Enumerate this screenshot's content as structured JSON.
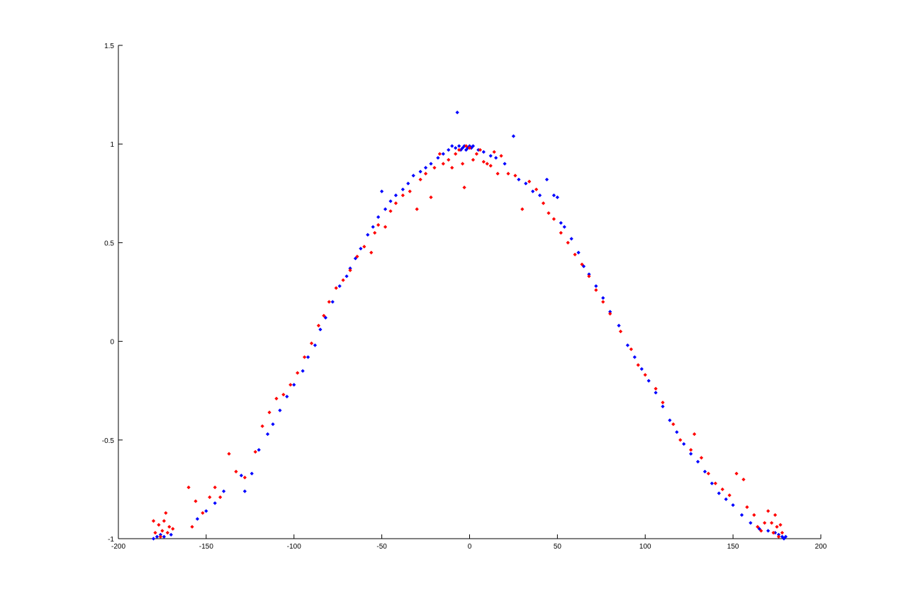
{
  "chart_data": {
    "type": "scatter",
    "title": "",
    "xlabel": "",
    "ylabel": "",
    "xlim": [
      -200,
      200
    ],
    "ylim": [
      -1,
      1.5
    ],
    "x_ticks": [
      -200,
      -150,
      -100,
      -50,
      0,
      50,
      100,
      150,
      200
    ],
    "y_ticks": [
      -1,
      -0.5,
      0,
      0.5,
      1,
      1.5
    ],
    "x_tick_labels": [
      "-200",
      "-150",
      "-100",
      "-50",
      "0",
      "50",
      "100",
      "150",
      "200"
    ],
    "y_tick_labels": [
      "-1",
      "-0.5",
      "0",
      "0.5",
      "1",
      "1.5"
    ],
    "grid": false,
    "marker": "diamond",
    "series": [
      {
        "color": "#0000ff",
        "points": [
          [
            -180,
            -1.0
          ],
          [
            -178,
            -0.99
          ],
          [
            -176,
            -0.98
          ],
          [
            -174,
            -0.99
          ],
          [
            -170,
            -0.98
          ],
          [
            -155,
            -0.9
          ],
          [
            -150,
            -0.86
          ],
          [
            -145,
            -0.82
          ],
          [
            -140,
            -0.76
          ],
          [
            -130,
            -0.68
          ],
          [
            -128,
            -0.76
          ],
          [
            -124,
            -0.67
          ],
          [
            -120,
            -0.55
          ],
          [
            -115,
            -0.47
          ],
          [
            -112,
            -0.42
          ],
          [
            -108,
            -0.35
          ],
          [
            -104,
            -0.28
          ],
          [
            -100,
            -0.22
          ],
          [
            -95,
            -0.15
          ],
          [
            -92,
            -0.08
          ],
          [
            -88,
            -0.02
          ],
          [
            -85,
            0.06
          ],
          [
            -82,
            0.12
          ],
          [
            -78,
            0.2
          ],
          [
            -74,
            0.28
          ],
          [
            -70,
            0.33
          ],
          [
            -68,
            0.37
          ],
          [
            -65,
            0.42
          ],
          [
            -62,
            0.47
          ],
          [
            -58,
            0.54
          ],
          [
            -55,
            0.58
          ],
          [
            -52,
            0.63
          ],
          [
            -50,
            0.76
          ],
          [
            -48,
            0.67
          ],
          [
            -45,
            0.71
          ],
          [
            -42,
            0.74
          ],
          [
            -38,
            0.77
          ],
          [
            -35,
            0.8
          ],
          [
            -32,
            0.84
          ],
          [
            -28,
            0.86
          ],
          [
            -25,
            0.88
          ],
          [
            -22,
            0.9
          ],
          [
            -18,
            0.93
          ],
          [
            -15,
            0.95
          ],
          [
            -12,
            0.97
          ],
          [
            -10,
            0.99
          ],
          [
            -8,
            0.98
          ],
          [
            -7,
            1.16
          ],
          [
            -6,
            0.99
          ],
          [
            -5,
            0.97
          ],
          [
            -4,
            0.98
          ],
          [
            -3,
            0.99
          ],
          [
            -2,
            0.97
          ],
          [
            -1,
            0.98
          ],
          [
            0,
            0.99
          ],
          [
            1,
            0.98
          ],
          [
            2,
            0.99
          ],
          [
            5,
            0.97
          ],
          [
            8,
            0.96
          ],
          [
            12,
            0.94
          ],
          [
            15,
            0.93
          ],
          [
            20,
            0.9
          ],
          [
            25,
            1.04
          ],
          [
            28,
            0.82
          ],
          [
            32,
            0.8
          ],
          [
            36,
            0.76
          ],
          [
            40,
            0.74
          ],
          [
            44,
            0.82
          ],
          [
            48,
            0.74
          ],
          [
            50,
            0.73
          ],
          [
            52,
            0.6
          ],
          [
            54,
            0.58
          ],
          [
            58,
            0.52
          ],
          [
            62,
            0.45
          ],
          [
            65,
            0.38
          ],
          [
            68,
            0.34
          ],
          [
            72,
            0.28
          ],
          [
            76,
            0.22
          ],
          [
            80,
            0.15
          ],
          [
            85,
            0.08
          ],
          [
            90,
            -0.02
          ],
          [
            94,
            -0.08
          ],
          [
            98,
            -0.14
          ],
          [
            102,
            -0.2
          ],
          [
            106,
            -0.26
          ],
          [
            110,
            -0.33
          ],
          [
            114,
            -0.4
          ],
          [
            118,
            -0.46
          ],
          [
            122,
            -0.52
          ],
          [
            126,
            -0.57
          ],
          [
            130,
            -0.61
          ],
          [
            134,
            -0.66
          ],
          [
            138,
            -0.72
          ],
          [
            142,
            -0.77
          ],
          [
            146,
            -0.8
          ],
          [
            150,
            -0.83
          ],
          [
            155,
            -0.88
          ],
          [
            160,
            -0.92
          ],
          [
            165,
            -0.95
          ],
          [
            170,
            -0.96
          ],
          [
            174,
            -0.97
          ],
          [
            176,
            -0.98
          ],
          [
            178,
            -0.99
          ],
          [
            179,
            -1.0
          ],
          [
            180,
            -0.99
          ]
        ]
      },
      {
        "color": "#ff0000",
        "points": [
          [
            -180,
            -0.91
          ],
          [
            -179,
            -0.97
          ],
          [
            -177,
            -0.93
          ],
          [
            -176,
            -0.99
          ],
          [
            -175,
            -0.96
          ],
          [
            -174,
            -0.91
          ],
          [
            -173,
            -0.87
          ],
          [
            -172,
            -0.97
          ],
          [
            -171,
            -0.94
          ],
          [
            -169,
            -0.95
          ],
          [
            -160,
            -0.74
          ],
          [
            -158,
            -0.94
          ],
          [
            -156,
            -0.81
          ],
          [
            -152,
            -0.87
          ],
          [
            -148,
            -0.79
          ],
          [
            -145,
            -0.74
          ],
          [
            -142,
            -0.79
          ],
          [
            -137,
            -0.57
          ],
          [
            -133,
            -0.66
          ],
          [
            -128,
            -0.69
          ],
          [
            -122,
            -0.56
          ],
          [
            -118,
            -0.43
          ],
          [
            -114,
            -0.36
          ],
          [
            -110,
            -0.29
          ],
          [
            -106,
            -0.27
          ],
          [
            -102,
            -0.22
          ],
          [
            -98,
            -0.16
          ],
          [
            -94,
            -0.08
          ],
          [
            -90,
            -0.01
          ],
          [
            -86,
            0.08
          ],
          [
            -83,
            0.13
          ],
          [
            -80,
            0.2
          ],
          [
            -76,
            0.27
          ],
          [
            -72,
            0.31
          ],
          [
            -68,
            0.36
          ],
          [
            -64,
            0.43
          ],
          [
            -60,
            0.48
          ],
          [
            -56,
            0.45
          ],
          [
            -54,
            0.55
          ],
          [
            -52,
            0.59
          ],
          [
            -48,
            0.58
          ],
          [
            -45,
            0.66
          ],
          [
            -42,
            0.7
          ],
          [
            -38,
            0.74
          ],
          [
            -34,
            0.76
          ],
          [
            -30,
            0.67
          ],
          [
            -28,
            0.82
          ],
          [
            -25,
            0.85
          ],
          [
            -22,
            0.73
          ],
          [
            -20,
            0.88
          ],
          [
            -17,
            0.95
          ],
          [
            -15,
            0.9
          ],
          [
            -12,
            0.92
          ],
          [
            -10,
            0.88
          ],
          [
            -8,
            0.95
          ],
          [
            -6,
            0.97
          ],
          [
            -4,
            0.9
          ],
          [
            -3,
            0.78
          ],
          [
            -2,
            0.99
          ],
          [
            0,
            0.98
          ],
          [
            2,
            0.92
          ],
          [
            4,
            0.95
          ],
          [
            6,
            0.97
          ],
          [
            8,
            0.91
          ],
          [
            10,
            0.9
          ],
          [
            12,
            0.89
          ],
          [
            14,
            0.96
          ],
          [
            16,
            0.85
          ],
          [
            18,
            0.94
          ],
          [
            22,
            0.85
          ],
          [
            26,
            0.84
          ],
          [
            30,
            0.67
          ],
          [
            34,
            0.81
          ],
          [
            38,
            0.77
          ],
          [
            42,
            0.7
          ],
          [
            45,
            0.65
          ],
          [
            48,
            0.62
          ],
          [
            52,
            0.55
          ],
          [
            56,
            0.5
          ],
          [
            60,
            0.44
          ],
          [
            64,
            0.39
          ],
          [
            68,
            0.33
          ],
          [
            72,
            0.26
          ],
          [
            76,
            0.2
          ],
          [
            80,
            0.14
          ],
          [
            86,
            0.05
          ],
          [
            92,
            -0.04
          ],
          [
            96,
            -0.12
          ],
          [
            100,
            -0.17
          ],
          [
            106,
            -0.24
          ],
          [
            110,
            -0.31
          ],
          [
            116,
            -0.42
          ],
          [
            120,
            -0.5
          ],
          [
            126,
            -0.55
          ],
          [
            128,
            -0.47
          ],
          [
            132,
            -0.59
          ],
          [
            136,
            -0.67
          ],
          [
            140,
            -0.72
          ],
          [
            144,
            -0.75
          ],
          [
            148,
            -0.78
          ],
          [
            152,
            -0.67
          ],
          [
            156,
            -0.7
          ],
          [
            158,
            -0.84
          ],
          [
            162,
            -0.88
          ],
          [
            164,
            -0.94
          ],
          [
            166,
            -0.96
          ],
          [
            168,
            -0.92
          ],
          [
            170,
            -0.86
          ],
          [
            172,
            -0.92
          ],
          [
            173,
            -0.97
          ],
          [
            174,
            -0.88
          ],
          [
            175,
            -0.94
          ],
          [
            176,
            -0.99
          ],
          [
            177,
            -0.93
          ],
          [
            178,
            -0.97
          ]
        ]
      }
    ]
  }
}
